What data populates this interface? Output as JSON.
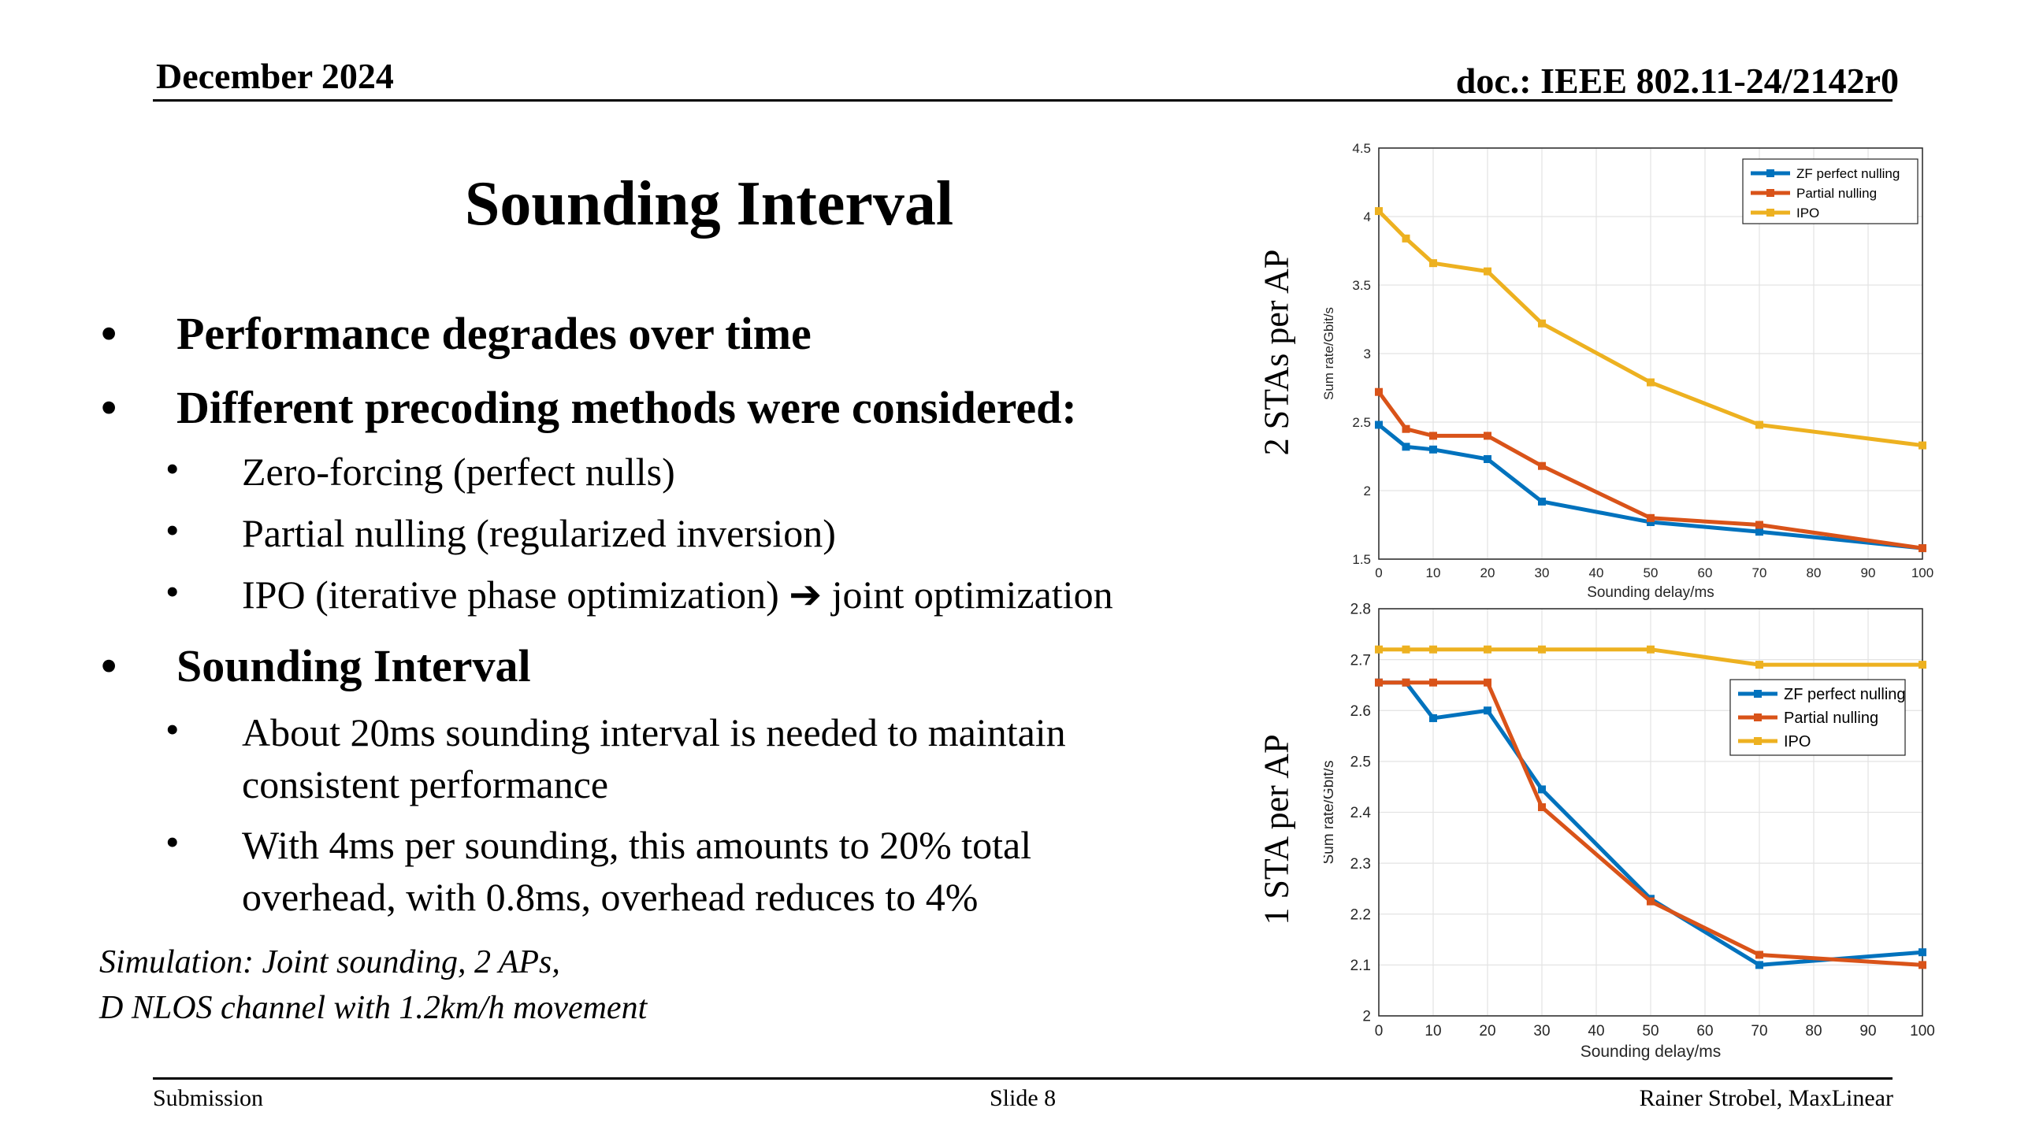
{
  "header": {
    "date": "December 2024",
    "doc": "doc.: IEEE 802.11-24/2142r0"
  },
  "footer": {
    "left": "Submission",
    "center": "Slide 8",
    "right": "Rainer Strobel, MaxLinear"
  },
  "title": "Sounding Interval",
  "bullets": {
    "b1": "Performance degrades over time",
    "b2": "Different precoding methods were considered:",
    "b2_sub": [
      "Zero-forcing (perfect nulls)",
      "Partial nulling (regularized inversion)",
      "IPO (iterative phase optimization)",
      "joint optimization"
    ],
    "b3": "Sounding Interval",
    "b3_sub1": [
      "About 20ms sounding interval is needed to maintain",
      "consistent performance"
    ],
    "b3_sub2": [
      "With 4ms per sounding, this amounts to 20% total",
      "overhead, with 0.8ms, overhead reduces to 4%"
    ],
    "bullet_char": "•",
    "arrow_char": "➔"
  },
  "note": [
    "Simulation: Joint sounding, 2 APs,",
    "D NLOS channel with 1.2km/h movement"
  ],
  "side_labels": {
    "top": "2 STAs  per  AP",
    "bottom": "1 STA  per  AP"
  },
  "colors": {
    "zf": "#0072BD",
    "partial": "#D95319",
    "ipo": "#EDB120"
  },
  "chart_data": [
    {
      "type": "line",
      "xlabel": "Sounding delay/ms",
      "ylabel": "Sum rate/Gbit/s",
      "xlim": [
        0,
        100
      ],
      "ylim": [
        1.5,
        4.5
      ],
      "xticks": [
        0,
        10,
        20,
        30,
        40,
        50,
        60,
        70,
        80,
        90,
        100
      ],
      "yticks": [
        1.5,
        2,
        2.5,
        3,
        3.5,
        4,
        4.5
      ],
      "grid": true,
      "legend": "top-right",
      "x": [
        0,
        5,
        10,
        20,
        30,
        50,
        70,
        100
      ],
      "series": [
        {
          "name": "ZF perfect nulling",
          "values": [
            2.48,
            2.32,
            2.3,
            2.23,
            1.92,
            1.77,
            1.7,
            1.58
          ]
        },
        {
          "name": "Partial nulling",
          "values": [
            2.72,
            2.45,
            2.4,
            2.4,
            2.18,
            1.8,
            1.75,
            1.58
          ]
        },
        {
          "name": "IPO",
          "values": [
            4.04,
            3.84,
            3.66,
            3.6,
            3.22,
            2.79,
            2.48,
            2.33
          ]
        }
      ]
    },
    {
      "type": "line",
      "xlabel": "Sounding delay/ms",
      "ylabel": "Sum rate/Gbit/s",
      "xlim": [
        0,
        100
      ],
      "ylim": [
        2,
        2.8
      ],
      "xticks": [
        0,
        10,
        20,
        30,
        40,
        50,
        60,
        70,
        80,
        90,
        100
      ],
      "yticks": [
        2,
        2.1,
        2.2,
        2.3,
        2.4,
        2.5,
        2.6,
        2.7,
        2.8
      ],
      "grid": true,
      "legend": "right",
      "x": [
        0,
        5,
        10,
        20,
        30,
        50,
        70,
        100
      ],
      "series": [
        {
          "name": "ZF perfect nulling",
          "values": [
            2.655,
            2.655,
            2.585,
            2.6,
            2.445,
            2.23,
            2.1,
            2.125
          ]
        },
        {
          "name": "Partial nulling",
          "values": [
            2.655,
            2.655,
            2.655,
            2.655,
            2.41,
            2.225,
            2.12,
            2.1
          ]
        },
        {
          "name": "IPO",
          "values": [
            2.72,
            2.72,
            2.72,
            2.72,
            2.72,
            2.72,
            2.69,
            2.69
          ]
        }
      ]
    }
  ]
}
